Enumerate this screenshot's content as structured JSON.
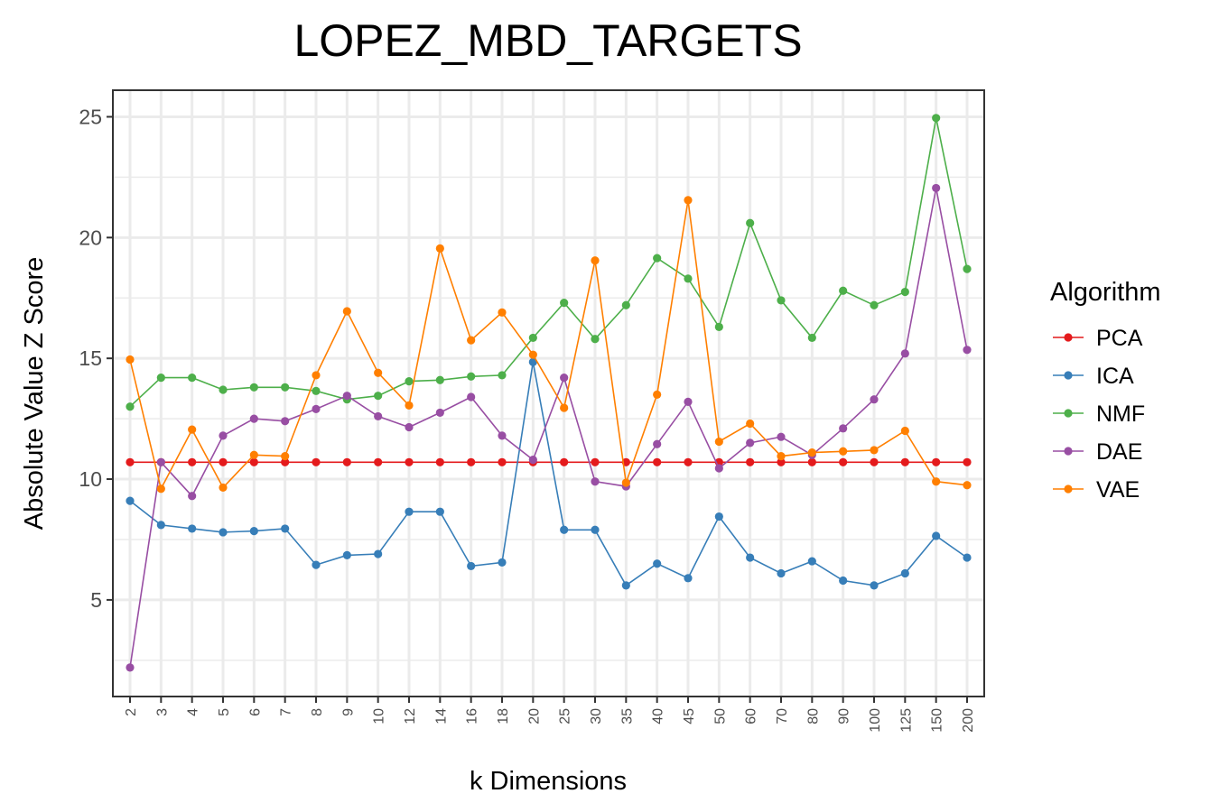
{
  "chart_data": {
    "type": "line",
    "title": "LOPEZ_MBD_TARGETS",
    "xlabel": "k Dimensions",
    "ylabel": "Absolute Value Z Score",
    "categories": [
      "2",
      "3",
      "4",
      "5",
      "6",
      "7",
      "8",
      "9",
      "10",
      "12",
      "14",
      "16",
      "18",
      "20",
      "25",
      "30",
      "35",
      "40",
      "45",
      "50",
      "60",
      "70",
      "80",
      "90",
      "100",
      "125",
      "150",
      "200"
    ],
    "ylim": [
      1.0,
      26.1
    ],
    "yticks": [
      5,
      10,
      15,
      20,
      25
    ],
    "grid": true,
    "legend": {
      "title": "Algorithm",
      "position": "right"
    },
    "series": [
      {
        "name": "PCA",
        "color": "#e41a1c",
        "values": [
          10.7,
          10.7,
          10.7,
          10.7,
          10.7,
          10.7,
          10.7,
          10.7,
          10.7,
          10.7,
          10.7,
          10.7,
          10.7,
          10.7,
          10.7,
          10.7,
          10.7,
          10.7,
          10.7,
          10.7,
          10.7,
          10.7,
          10.7,
          10.7,
          10.7,
          10.7,
          10.7,
          10.7
        ]
      },
      {
        "name": "ICA",
        "color": "#377eb8",
        "values": [
          9.1,
          8.1,
          7.95,
          7.8,
          7.85,
          7.95,
          6.45,
          6.85,
          6.9,
          8.65,
          8.65,
          6.4,
          6.55,
          14.85,
          7.9,
          7.9,
          5.6,
          6.5,
          5.9,
          8.45,
          6.75,
          6.1,
          6.6,
          5.8,
          5.6,
          6.1,
          7.65,
          6.75
        ]
      },
      {
        "name": "NMF",
        "color": "#4daf4a",
        "values": [
          13.0,
          14.2,
          14.2,
          13.7,
          13.8,
          13.8,
          13.65,
          13.3,
          13.45,
          14.05,
          14.1,
          14.25,
          14.3,
          15.85,
          17.3,
          15.8,
          17.2,
          19.15,
          18.3,
          16.3,
          20.6,
          17.4,
          15.85,
          17.8,
          17.2,
          17.75,
          24.95,
          18.7
        ]
      },
      {
        "name": "DAE",
        "color": "#984ea3",
        "values": [
          2.2,
          10.7,
          9.3,
          11.8,
          12.5,
          12.4,
          12.9,
          13.45,
          12.6,
          12.15,
          12.75,
          13.4,
          11.8,
          10.8,
          14.2,
          9.9,
          9.7,
          11.45,
          13.2,
          10.45,
          11.5,
          11.75,
          11.0,
          12.1,
          13.3,
          15.2,
          22.05,
          15.35
        ]
      },
      {
        "name": "VAE",
        "color": "#ff7f00",
        "values": [
          14.95,
          9.6,
          12.05,
          9.65,
          11.0,
          10.95,
          14.3,
          16.95,
          14.4,
          13.05,
          19.55,
          15.75,
          16.9,
          15.15,
          12.95,
          19.05,
          9.85,
          13.5,
          21.55,
          11.55,
          12.3,
          10.95,
          11.1,
          11.15,
          11.2,
          12.0,
          9.9,
          9.75
        ]
      }
    ]
  }
}
